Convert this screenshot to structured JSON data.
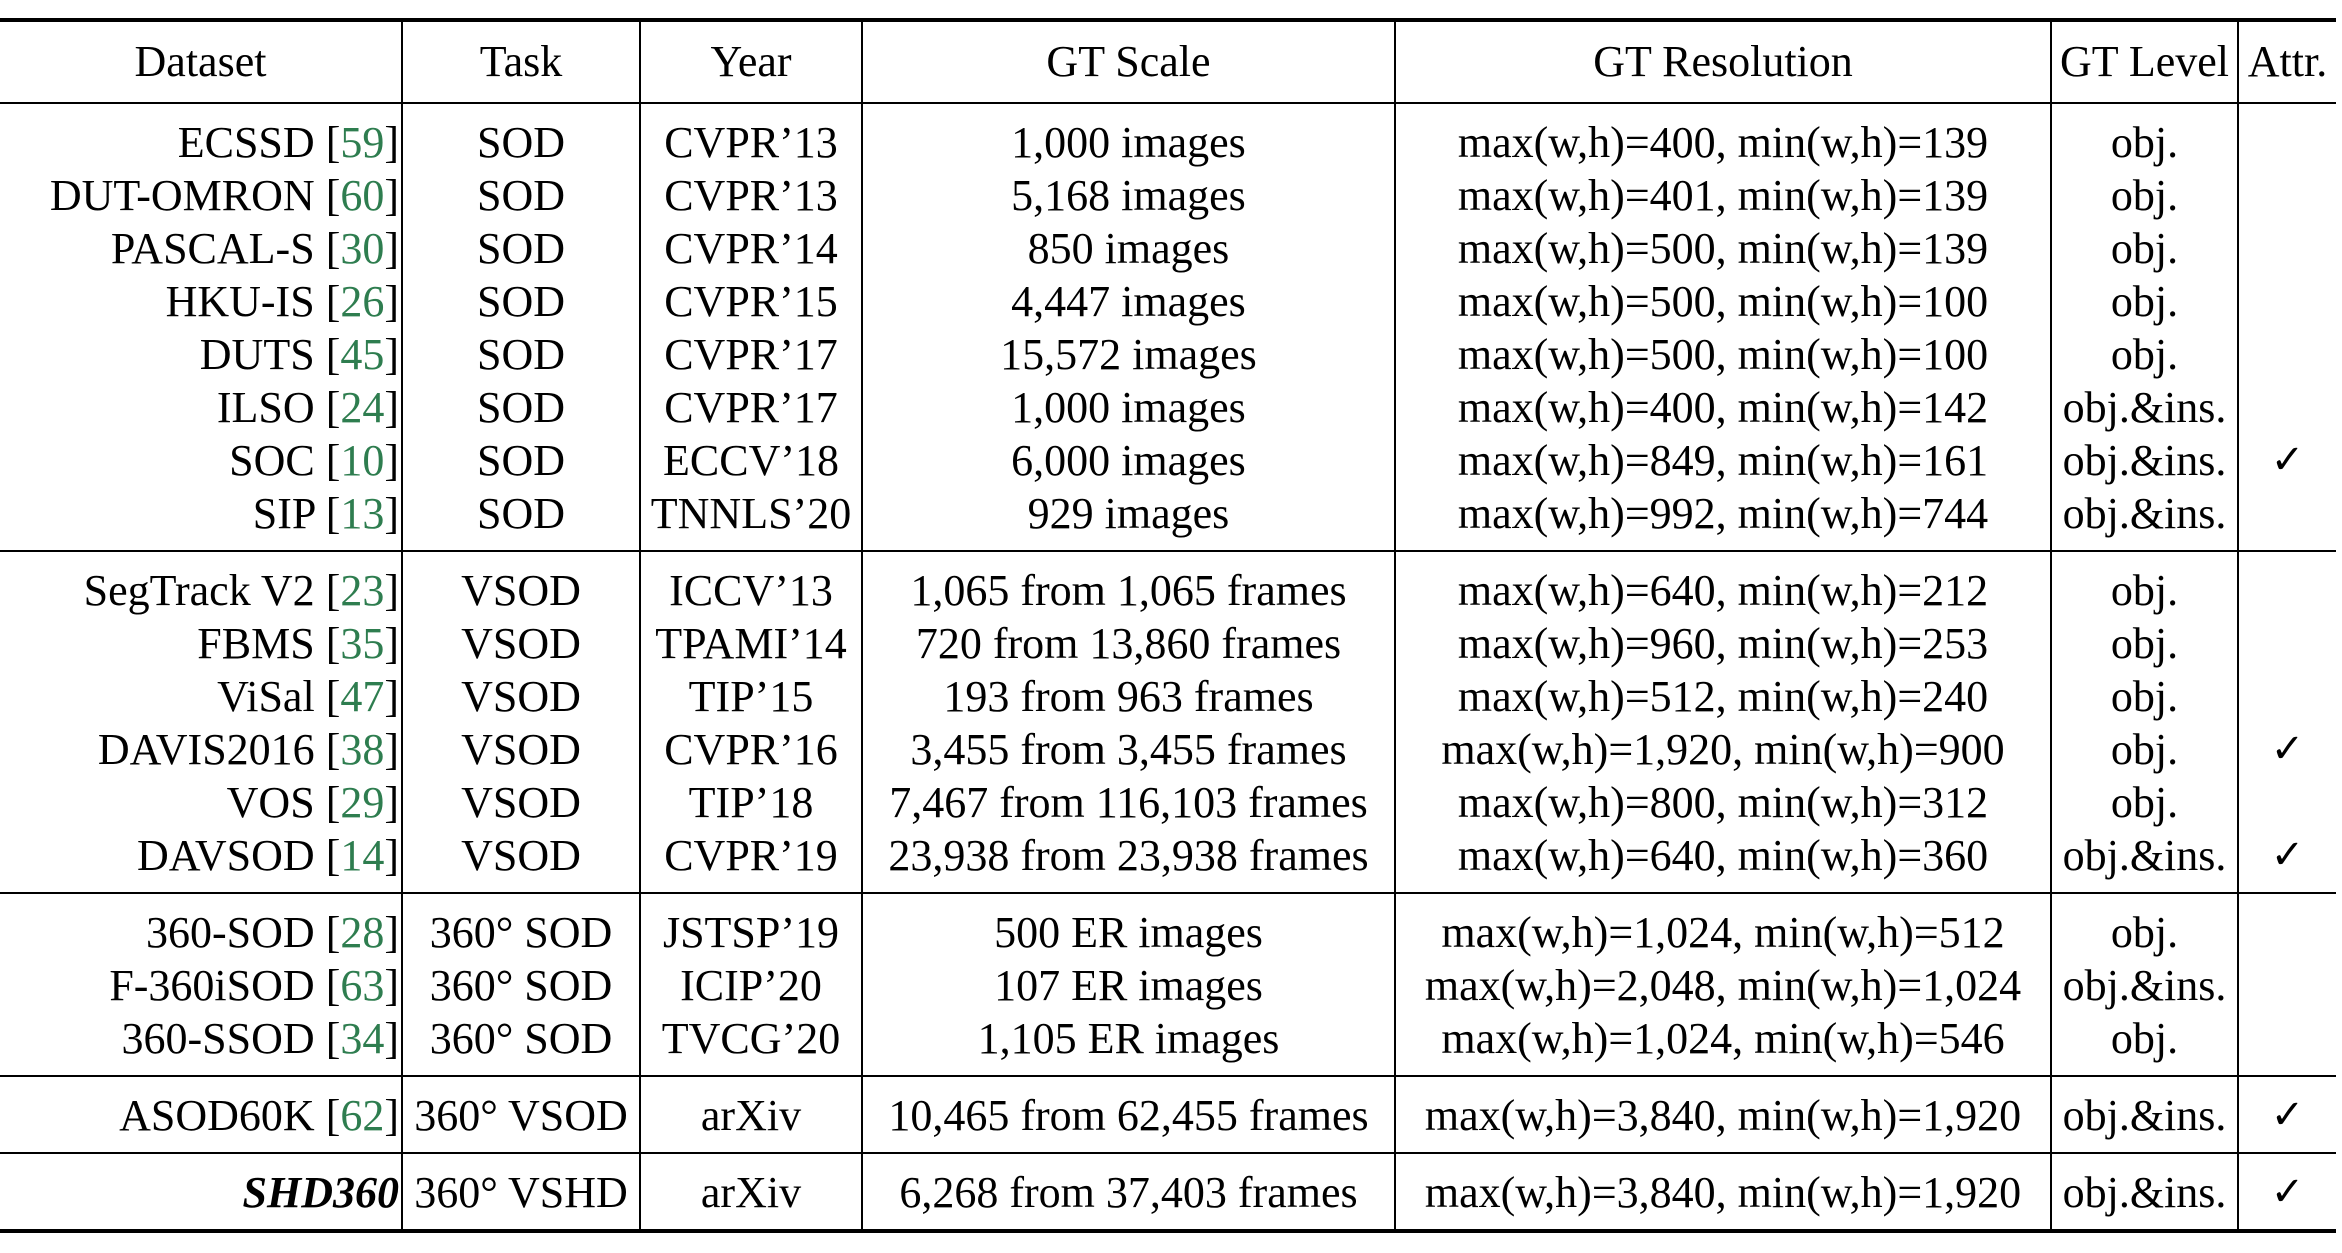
{
  "headers": {
    "dataset": "Dataset",
    "task": "Task",
    "year": "Year",
    "gt_scale": "GT Scale",
    "gt_resolution": "GT Resolution",
    "gt_level": "GT Level",
    "attr": "Attr."
  },
  "check_symbol": "✓",
  "groups": [
    [
      {
        "dataset": "ECSSD",
        "ref": "59",
        "task": "SOD",
        "year": "CVPR’13",
        "scale": "1,000 images",
        "resolution": "max(w,h)=400, min(w,h)=139",
        "level": "obj.",
        "attr": ""
      },
      {
        "dataset": "DUT-OMRON",
        "ref": "60",
        "task": "SOD",
        "year": "CVPR’13",
        "scale": "5,168 images",
        "resolution": "max(w,h)=401, min(w,h)=139",
        "level": "obj.",
        "attr": ""
      },
      {
        "dataset": "PASCAL-S",
        "ref": "30",
        "task": "SOD",
        "year": "CVPR’14",
        "scale": "850 images",
        "resolution": "max(w,h)=500, min(w,h)=139",
        "level": "obj.",
        "attr": ""
      },
      {
        "dataset": "HKU-IS",
        "ref": "26",
        "task": "SOD",
        "year": "CVPR’15",
        "scale": "4,447 images",
        "resolution": "max(w,h)=500, min(w,h)=100",
        "level": "obj.",
        "attr": ""
      },
      {
        "dataset": "DUTS",
        "ref": "45",
        "task": "SOD",
        "year": "CVPR’17",
        "scale": "15,572 images",
        "resolution": "max(w,h)=500, min(w,h)=100",
        "level": "obj.",
        "attr": ""
      },
      {
        "dataset": "ILSO",
        "ref": "24",
        "task": "SOD",
        "year": "CVPR’17",
        "scale": "1,000 images",
        "resolution": "max(w,h)=400, min(w,h)=142",
        "level": "obj.&ins.",
        "attr": ""
      },
      {
        "dataset": "SOC",
        "ref": "10",
        "task": "SOD",
        "year": "ECCV’18",
        "scale": "6,000 images",
        "resolution": "max(w,h)=849, min(w,h)=161",
        "level": "obj.&ins.",
        "attr": "✓"
      },
      {
        "dataset": "SIP",
        "ref": "13",
        "task": "SOD",
        "year": "TNNLS’20",
        "scale": "929 images",
        "resolution": "max(w,h)=992, min(w,h)=744",
        "level": "obj.&ins.",
        "attr": ""
      }
    ],
    [
      {
        "dataset": "SegTrack V2",
        "ref": "23",
        "task": "VSOD",
        "year": "ICCV’13",
        "scale": "1,065 from 1,065 frames",
        "resolution": "max(w,h)=640, min(w,h)=212",
        "level": "obj.",
        "attr": ""
      },
      {
        "dataset": "FBMS",
        "ref": "35",
        "task": "VSOD",
        "year": "TPAMI’14",
        "scale": "720 from 13,860 frames",
        "resolution": "max(w,h)=960, min(w,h)=253",
        "level": "obj.",
        "attr": ""
      },
      {
        "dataset": "ViSal",
        "ref": "47",
        "task": "VSOD",
        "year": "TIP’15",
        "scale": "193 from 963 frames",
        "resolution": "max(w,h)=512, min(w,h)=240",
        "level": "obj.",
        "attr": ""
      },
      {
        "dataset": "DAVIS2016",
        "ref": "38",
        "task": "VSOD",
        "year": "CVPR’16",
        "scale": "3,455 from 3,455 frames",
        "resolution": "max(w,h)=1,920, min(w,h)=900",
        "level": "obj.",
        "attr": "✓"
      },
      {
        "dataset": "VOS",
        "ref": "29",
        "task": "VSOD",
        "year": "TIP’18",
        "scale": "7,467 from 116,103 frames",
        "resolution": "max(w,h)=800, min(w,h)=312",
        "level": "obj.",
        "attr": ""
      },
      {
        "dataset": "DAVSOD",
        "ref": "14",
        "task": "VSOD",
        "year": "CVPR’19",
        "scale": "23,938 from 23,938 frames",
        "resolution": "max(w,h)=640, min(w,h)=360",
        "level": "obj.&ins.",
        "attr": "✓"
      }
    ],
    [
      {
        "dataset": "360-SOD",
        "ref": "28",
        "task": "360° SOD",
        "year": "JSTSP’19",
        "scale": "500 ER images",
        "resolution": "max(w,h)=1,024, min(w,h)=512",
        "level": "obj.",
        "attr": ""
      },
      {
        "dataset": "F-360iSOD",
        "ref": "63",
        "task": "360° SOD",
        "year": "ICIP’20",
        "scale": "107 ER images",
        "resolution": "max(w,h)=2,048, min(w,h)=1,024",
        "level": "obj.&ins.",
        "attr": ""
      },
      {
        "dataset": "360-SSOD",
        "ref": "34",
        "task": "360° SOD",
        "year": "TVCG’20",
        "scale": "1,105 ER images",
        "resolution": "max(w,h)=1,024, min(w,h)=546",
        "level": "obj.",
        "attr": ""
      }
    ],
    [
      {
        "dataset": "ASOD60K",
        "ref": "62",
        "task": "360° VSOD",
        "year": "arXiv",
        "scale": "10,465 from 62,455 frames",
        "resolution": "max(w,h)=3,840, min(w,h)=1,920",
        "level": "obj.&ins.",
        "attr": "✓"
      }
    ],
    [
      {
        "dataset": "SHD360",
        "ref": "",
        "task": "360° VSHD",
        "year": "arXiv",
        "scale": "6,268 from 37,403 frames",
        "resolution": "max(w,h)=3,840, min(w,h)=1,920",
        "level": "obj.&ins.",
        "attr": "✓"
      }
    ]
  ]
}
